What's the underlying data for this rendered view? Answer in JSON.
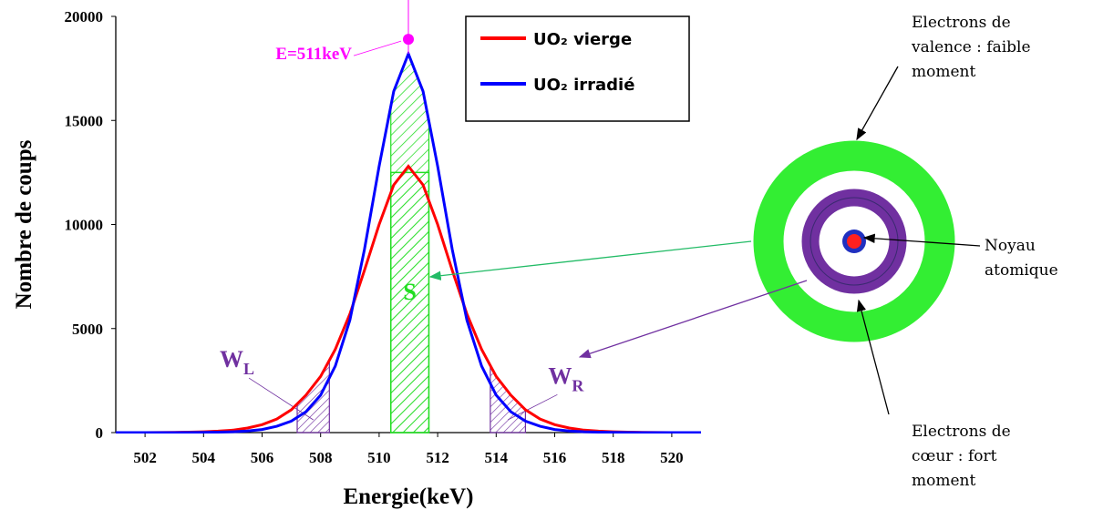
{
  "chart_data": {
    "type": "line",
    "xlabel": "Energie(keV)",
    "ylabel": "Nombre de coups",
    "x": [
      501,
      501.5,
      502,
      502.5,
      503,
      503.5,
      504,
      504.5,
      505,
      505.5,
      506,
      506.5,
      507,
      507.5,
      508,
      508.5,
      509,
      509.5,
      510,
      510.5,
      511,
      511.5,
      512,
      512.5,
      513,
      513.5,
      514,
      514.5,
      515,
      515.5,
      516,
      516.5,
      517,
      517.5,
      518,
      518.5,
      519,
      519.5,
      520,
      520.5,
      521
    ],
    "series": [
      {
        "name": "UO₂ vierge",
        "color": "#ff0000",
        "values": [
          0,
          0,
          0,
          5,
          10,
          20,
          40,
          70,
          120,
          220,
          380,
          650,
          1100,
          1800,
          2700,
          4000,
          5700,
          7800,
          10000,
          11900,
          12800,
          11900,
          10000,
          7800,
          5700,
          4000,
          2700,
          1800,
          1100,
          650,
          380,
          220,
          120,
          70,
          40,
          20,
          10,
          5,
          0,
          0,
          0
        ]
      },
      {
        "name": "UO₂ irradié",
        "color": "#0000ff",
        "values": [
          0,
          0,
          0,
          0,
          0,
          5,
          10,
          20,
          40,
          80,
          150,
          300,
          550,
          1000,
          1800,
          3200,
          5400,
          8800,
          12800,
          16400,
          18200,
          16400,
          12800,
          8800,
          5400,
          3200,
          1800,
          1000,
          550,
          300,
          150,
          80,
          40,
          20,
          10,
          5,
          0,
          0,
          0,
          0,
          0
        ]
      }
    ],
    "xlim": [
      501,
      521
    ],
    "ylim": [
      0,
      20000
    ],
    "xticks": [
      502,
      504,
      506,
      508,
      510,
      512,
      514,
      516,
      518,
      520
    ],
    "yticks": [
      0,
      5000,
      10000,
      15000,
      20000
    ],
    "annotations": {
      "peak": {
        "label": "E=511keV",
        "x": 511,
        "y": 18900,
        "color": "#ff00ff"
      },
      "regions": [
        {
          "label": "S",
          "xrange": [
            510.4,
            511.7
          ],
          "height": 12500,
          "color": "#22dd22"
        },
        {
          "label": "W",
          "subscript": "L",
          "xrange": [
            507.2,
            508.3
          ],
          "color": "#7030a0"
        },
        {
          "label": "W",
          "subscript": "R",
          "xrange": [
            513.8,
            515
          ],
          "color": "#7030a0"
        }
      ]
    }
  },
  "diagram": {
    "valence_label": [
      "Electrons de",
      "valence : faible",
      "moment"
    ],
    "nucleus_label": [
      "Noyau",
      "atomique"
    ],
    "core_label": [
      "Electrons de",
      "cœur : fort",
      "moment"
    ]
  }
}
